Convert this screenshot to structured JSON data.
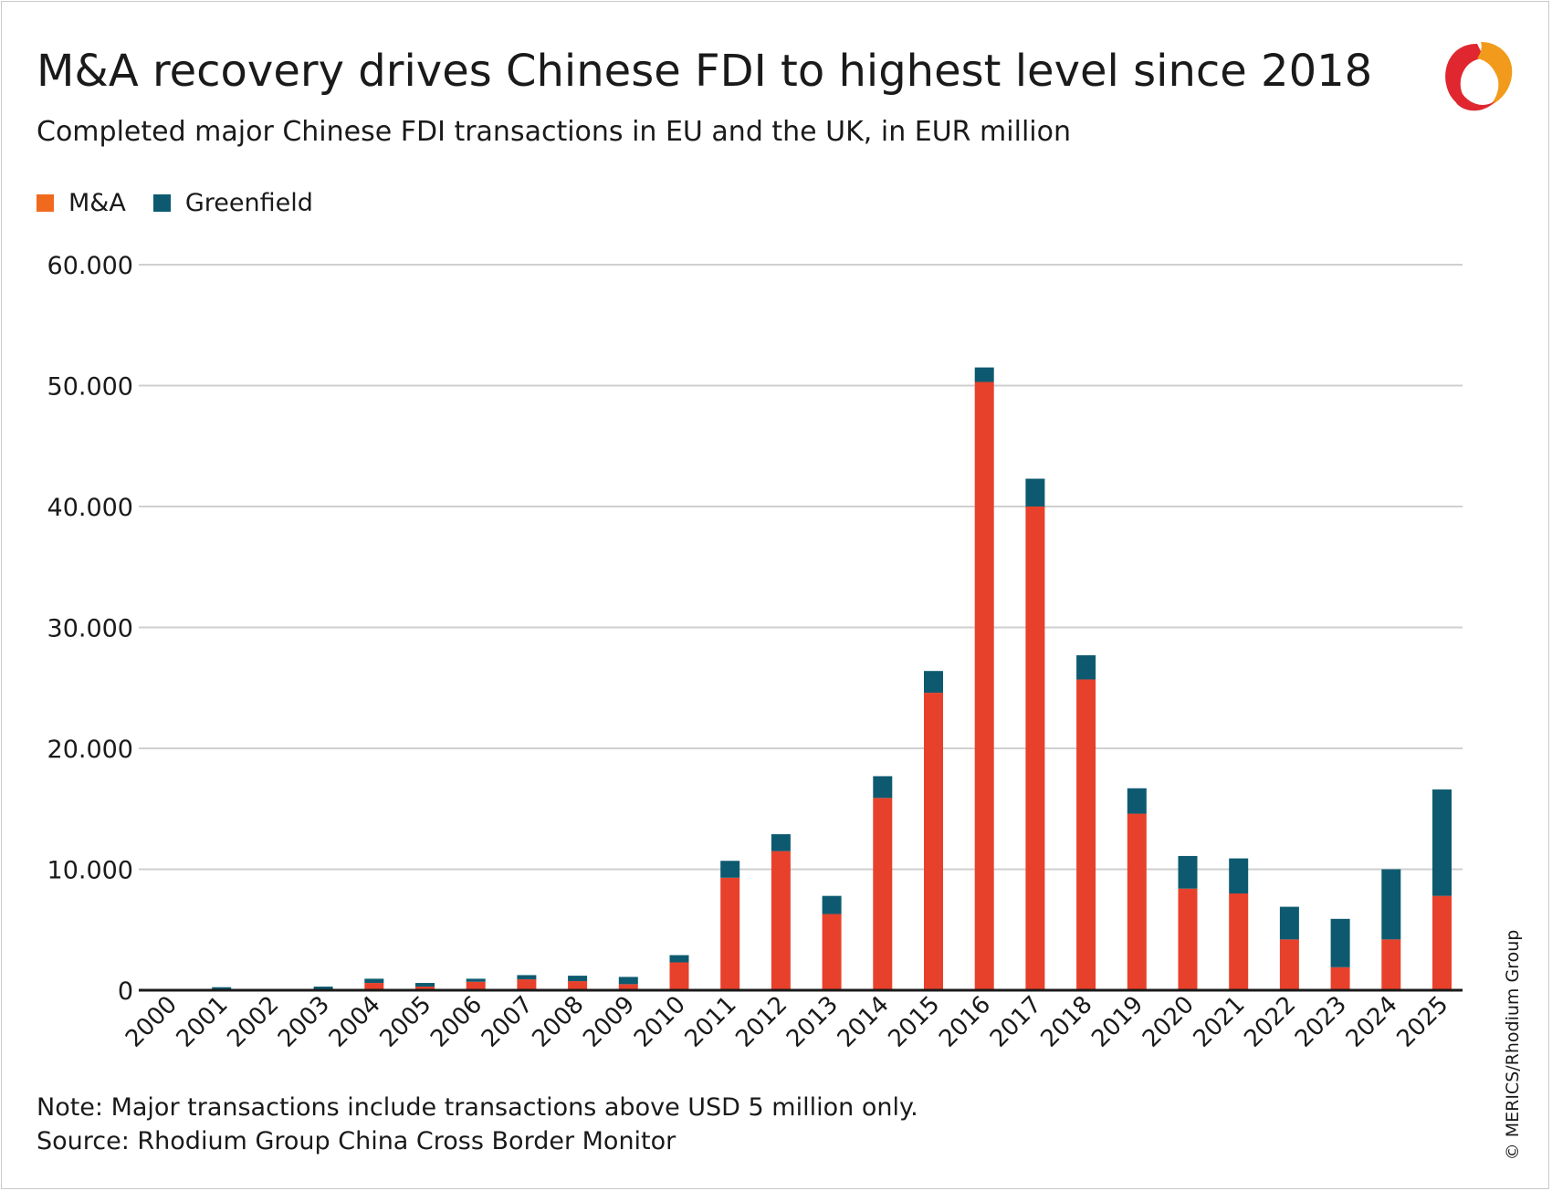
{
  "header": {
    "title": "M&A recovery drives Chinese FDI to highest level since 2018",
    "subtitle": "Completed major Chinese FDI transactions in EU and the UK, in EUR million"
  },
  "footer": {
    "note": "Note: Major transactions include transactions above USD 5 million only.",
    "source": "Source: Rhodium Group China Cross Border Monitor",
    "copyright": "© MERICS/Rhodium Group"
  },
  "logo": {
    "icon": "merics-logo-icon"
  },
  "colors": {
    "ma": "#e8412b",
    "greenfield": "#0d5a70",
    "legend_ma": "#f06a1e",
    "grid": "#cfcfcf",
    "axis": "#1a1a1a",
    "logo_red": "#e0262e",
    "logo_orange": "#f29a1b"
  },
  "chart_data": {
    "type": "bar",
    "stacked": true,
    "title": "M&A recovery drives Chinese FDI to highest level since 2018",
    "subtitle": "Completed major Chinese FDI transactions in EU and the UK, in EUR million",
    "xlabel": "",
    "ylabel": "",
    "ylim": [
      0,
      60000
    ],
    "yticks": [
      0,
      10000,
      20000,
      30000,
      40000,
      50000,
      60000
    ],
    "ytick_labels": [
      "0",
      "10.000",
      "20.000",
      "30.000",
      "40.000",
      "50.000",
      "60.000"
    ],
    "grid": true,
    "legend_position": "top-left",
    "categories": [
      "2000",
      "2001",
      "2002",
      "2003",
      "2004",
      "2005",
      "2006",
      "2007",
      "2008",
      "2009",
      "2010",
      "2011",
      "2012",
      "2013",
      "2014",
      "2015",
      "2016",
      "2017",
      "2018",
      "2019",
      "2020",
      "2021",
      "2022",
      "2023",
      "2024",
      "2025"
    ],
    "series": [
      {
        "name": "M&A",
        "values": [
          0,
          50,
          0,
          50,
          600,
          300,
          700,
          900,
          750,
          500,
          2300,
          9300,
          11500,
          6300,
          15900,
          24600,
          50300,
          40000,
          25700,
          14600,
          8400,
          8000,
          4200,
          1900,
          4200,
          7800
        ]
      },
      {
        "name": "Greenfield",
        "values": [
          0,
          200,
          0,
          250,
          350,
          300,
          250,
          350,
          450,
          600,
          600,
          1400,
          1400,
          1500,
          1800,
          1800,
          1200,
          2300,
          2000,
          2100,
          2700,
          2900,
          2700,
          4000,
          5800,
          8800
        ]
      }
    ]
  }
}
